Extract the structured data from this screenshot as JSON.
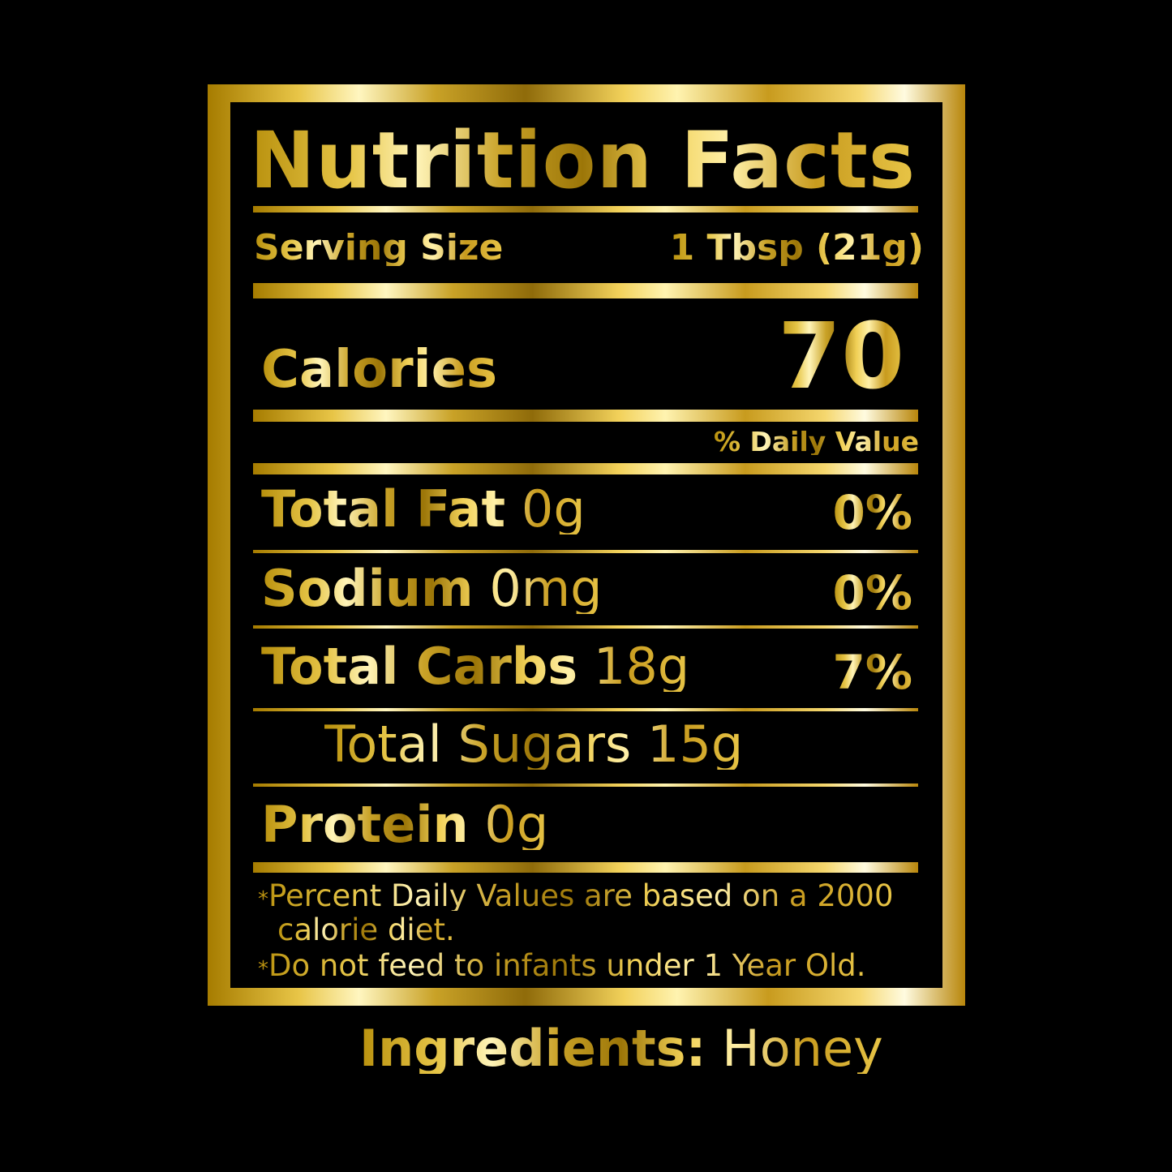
{
  "label": {
    "title": "Nutrition Facts",
    "serving_size_label": "Serving Size",
    "serving_size_value": "1 Tbsp (21g)",
    "calories_label": "Calories",
    "calories_value": "70",
    "daily_value_header": "% Daily Value",
    "rows": [
      {
        "name": "Total Fat",
        "amount": "0g",
        "dv": "0%"
      },
      {
        "name": "Sodium",
        "amount": "0mg",
        "dv": "0%"
      },
      {
        "name": "Total Carbs",
        "amount": "18g",
        "dv": "7%"
      },
      {
        "name": "Total Sugars",
        "amount": "15g",
        "dv": ""
      },
      {
        "name": "Protein",
        "amount": "0g",
        "dv": ""
      }
    ],
    "footnotes": [
      {
        "marker": "*",
        "text": "Percent Daily Values are based on a 2000",
        "cont": "calorie diet."
      },
      {
        "marker": "*",
        "text": "Do not feed to infants under 1 Year Old."
      }
    ]
  },
  "ingredients": {
    "label": "Ingredients:",
    "value": "Honey"
  },
  "colors": {
    "background": "#000000",
    "gold": "#d4af37"
  }
}
